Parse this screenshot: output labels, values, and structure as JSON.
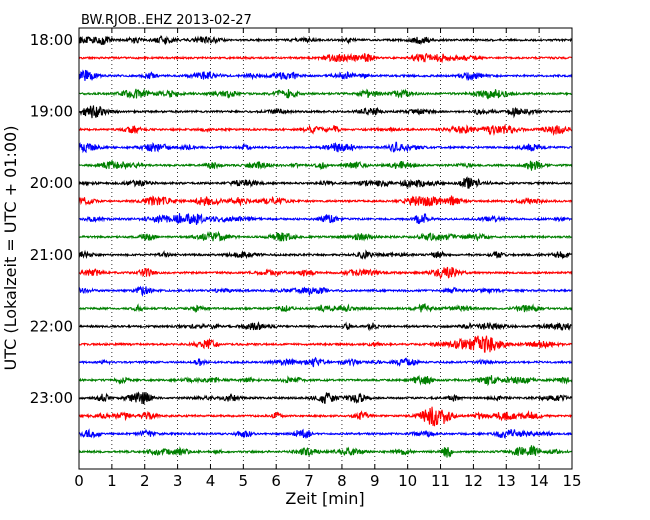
{
  "chart_data": {
    "type": "line",
    "title": "BW.RJOB..EHZ 2013-02-27",
    "xlabel": "Zeit  [min]",
    "ylabel": "UTC (Lokalzeit = UTC + 01:00)",
    "xlim": [
      0,
      15
    ],
    "x_ticks": [
      "0",
      "1",
      "2",
      "3",
      "4",
      "5",
      "6",
      "7",
      "8",
      "9",
      "10",
      "11",
      "12",
      "13",
      "14",
      "15"
    ],
    "y_ticks": [
      "18:00",
      "19:00",
      "20:00",
      "21:00",
      "22:00",
      "23:00"
    ],
    "grid": "vertical dotted at each minute",
    "colors": [
      "#000000",
      "#ff0000",
      "#0000ff",
      "#008000"
    ],
    "trace_count": 24,
    "trace_interval_min": 15
  }
}
